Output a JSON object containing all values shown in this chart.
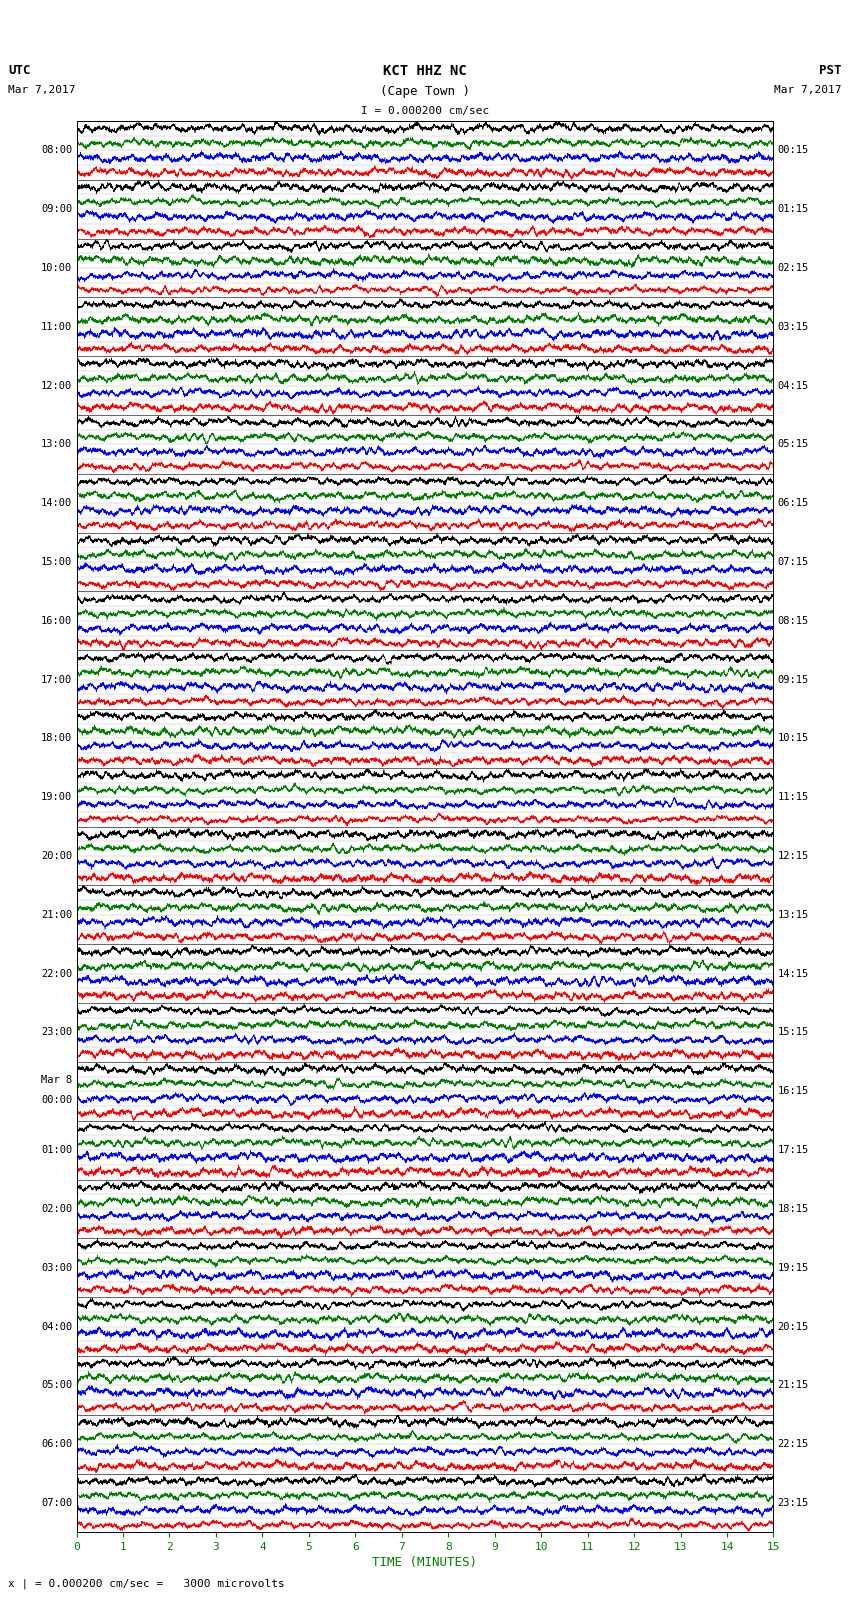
{
  "title_line1": "KCT HHZ NC",
  "title_line2": "(Cape Town )",
  "scale_label": "I = 0.000200 cm/sec",
  "left_header": "UTC",
  "right_header": "PST",
  "left_date": "Mar 7,2017",
  "right_date": "Mar 7,2017",
  "bottom_label": "TIME (MINUTES)",
  "bottom_note": "x | = 0.000200 cm/sec =   3000 microvolts",
  "utc_labels": [
    "08:00",
    "09:00",
    "10:00",
    "11:00",
    "12:00",
    "13:00",
    "14:00",
    "15:00",
    "16:00",
    "17:00",
    "18:00",
    "19:00",
    "20:00",
    "21:00",
    "22:00",
    "23:00",
    "Mar 8\n00:00",
    "01:00",
    "02:00",
    "03:00",
    "04:00",
    "05:00",
    "06:00",
    "07:00"
  ],
  "pst_labels": [
    "00:15",
    "01:15",
    "02:15",
    "03:15",
    "04:15",
    "05:15",
    "06:15",
    "07:15",
    "08:15",
    "09:15",
    "10:15",
    "11:15",
    "12:15",
    "13:15",
    "14:15",
    "15:15",
    "16:15",
    "17:15",
    "18:15",
    "19:15",
    "20:15",
    "21:15",
    "22:15",
    "23:15"
  ],
  "x_ticks": [
    0,
    1,
    2,
    3,
    4,
    5,
    6,
    7,
    8,
    9,
    10,
    11,
    12,
    13,
    14,
    15
  ],
  "num_rows": 24,
  "row_colors": [
    "#ff0000",
    "#0000ff",
    "#008000",
    "#000000"
  ],
  "bg_color": "#ffffff",
  "plot_bg": "#ffffff",
  "font_color": "#000000",
  "green_color": "#008000",
  "seed": 42
}
